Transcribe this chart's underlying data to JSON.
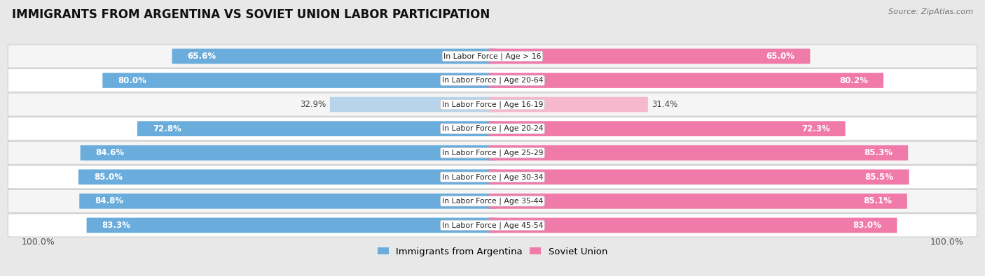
{
  "title": "IMMIGRANTS FROM ARGENTINA VS SOVIET UNION LABOR PARTICIPATION",
  "source": "Source: ZipAtlas.com",
  "categories": [
    "In Labor Force | Age > 16",
    "In Labor Force | Age 20-64",
    "In Labor Force | Age 16-19",
    "In Labor Force | Age 20-24",
    "In Labor Force | Age 25-29",
    "In Labor Force | Age 30-34",
    "In Labor Force | Age 35-44",
    "In Labor Force | Age 45-54"
  ],
  "argentina_values": [
    65.6,
    80.0,
    32.9,
    72.8,
    84.6,
    85.0,
    84.8,
    83.3
  ],
  "soviet_values": [
    65.0,
    80.2,
    31.4,
    72.3,
    85.3,
    85.5,
    85.1,
    83.0
  ],
  "argentina_color": "#6aaddc",
  "argentina_light_color": "#b8d4ea",
  "soviet_color": "#f07aaa",
  "soviet_light_color": "#f5b8cc",
  "background_color": "#e8e8e8",
  "row_bg_even": "#f5f5f5",
  "row_bg_odd": "#ffffff",
  "max_value": 100.0,
  "bar_height": 0.62,
  "title_fontsize": 12,
  "label_fontsize": 8.5,
  "tick_fontsize": 9,
  "legend_fontsize": 9.5
}
